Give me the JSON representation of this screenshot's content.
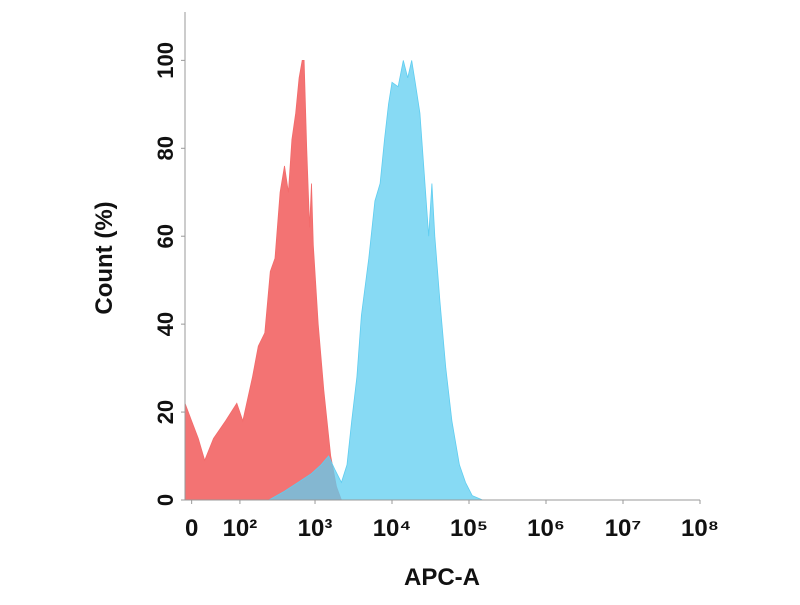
{
  "chart_data": {
    "type": "area",
    "x_label": "APC-A",
    "y_label": "Count  (%)",
    "xscale": "biexponential",
    "xlim": [
      -10,
      100000000
    ],
    "xticks": [
      0,
      {
        "value": 100,
        "label": "10²"
      },
      {
        "value": 1000,
        "label": "10³"
      },
      {
        "value": 10000,
        "label": "10⁴"
      },
      {
        "value": 100000,
        "label": "10⁵"
      },
      {
        "value": 1000000,
        "label": "10⁶"
      },
      {
        "value": 10000000,
        "label": "10⁷"
      },
      {
        "value": 100000000,
        "label": "10⁸"
      }
    ],
    "ylim": [
      0,
      111
    ],
    "yticks": [
      0,
      20,
      40,
      60,
      80,
      100
    ],
    "series": [
      {
        "color": "#f26b6b",
        "x": [
          -10,
          0,
          10,
          20,
          35,
          60,
          90,
          110,
          150,
          180,
          220,
          260,
          300,
          350,
          400,
          450,
          500,
          560,
          620,
          680,
          720,
          780,
          850,
          900,
          950,
          1100,
          1300,
          1600,
          1900,
          2200
        ],
        "values": [
          22,
          18,
          14,
          9,
          14,
          18,
          22,
          18,
          28,
          35,
          38,
          52,
          55,
          70,
          76,
          70,
          82,
          88,
          96,
          100,
          100,
          80,
          62,
          72,
          58,
          40,
          25,
          10,
          3,
          0
        ]
      },
      {
        "color": "#5fcdf0",
        "x": [
          250,
          400,
          600,
          900,
          1200,
          1500,
          1800,
          2200,
          2600,
          3000,
          3500,
          4000,
          5000,
          6000,
          7000,
          8000,
          9000,
          10000,
          12000,
          14000,
          16000,
          18000,
          20000,
          23000,
          26000,
          30000,
          33000,
          36000,
          42000,
          50000,
          60000,
          75000,
          90000,
          110000,
          150000
        ],
        "values": [
          0,
          2,
          4,
          6,
          8,
          10,
          7,
          4,
          8,
          18,
          28,
          42,
          55,
          68,
          72,
          82,
          90,
          95,
          94,
          100,
          96,
          100,
          95,
          88,
          75,
          60,
          72,
          60,
          45,
          30,
          18,
          8,
          4,
          1,
          0
        ]
      }
    ]
  }
}
